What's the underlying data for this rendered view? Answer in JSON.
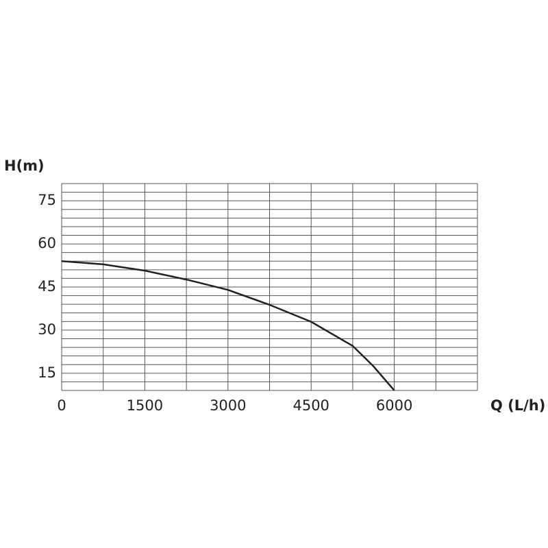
{
  "chart_data": {
    "type": "line",
    "y_label": "H(m)",
    "x_label": "Q (L/h)",
    "x": [
      0,
      750,
      1500,
      2250,
      3000,
      3750,
      4500,
      5250,
      5625,
      6000
    ],
    "series": [
      {
        "color": "#222222",
        "values": [
          54,
          52.9,
          50.7,
          47.6,
          44,
          38.8,
          32.9,
          24.5,
          17.4,
          9
        ]
      }
    ],
    "xlim": [
      0,
      7500
    ],
    "xticks": [
      0,
      1500,
      3000,
      4500,
      6000
    ],
    "ylim": [
      9,
      81
    ],
    "yticks": [
      15,
      30,
      45,
      60,
      75
    ],
    "x_gridlines": [
      750,
      1500,
      2250,
      3000,
      3750,
      4500,
      5250,
      6000,
      6750,
      7500
    ],
    "y_gridlines": [
      9,
      12,
      15,
      18,
      21,
      24,
      27,
      30,
      33,
      36,
      39,
      42,
      45,
      48,
      51,
      54,
      57,
      60,
      63,
      66,
      69,
      72,
      75,
      78,
      81
    ],
    "grid": true
  }
}
